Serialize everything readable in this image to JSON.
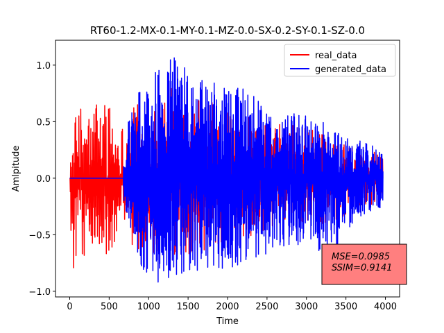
{
  "chart_data": {
    "type": "line",
    "title": "RT60-1.2-MX-0.1-MY-0.1-MZ-0.0-SX-0.2-SY-0.1-SZ-0.0",
    "xlabel": "Time",
    "ylabel": "Amlpitude",
    "xlim": [
      -180,
      4180
    ],
    "ylim": [
      -1.05,
      1.22
    ],
    "x_ticks": [
      0,
      500,
      1000,
      1500,
      2000,
      2500,
      3000,
      3500,
      4000
    ],
    "x_tick_labels": [
      "0",
      "500",
      "1000",
      "1500",
      "2000",
      "2500",
      "3000",
      "3500",
      "4000"
    ],
    "y_ticks": [
      1.0,
      0.5,
      0.0,
      -0.5,
      -1.0
    ],
    "y_tick_labels": [
      "1.0",
      "0.5",
      "0.0",
      "−0.5",
      "−1.0"
    ],
    "grid": false,
    "legend_position": "top-right",
    "series": [
      {
        "name": "real_data",
        "color": "#ff0000",
        "x_range": [
          0,
          3970
        ],
        "envelope": {
          "x": [
            0,
            30,
            100,
            200,
            300,
            400,
            600,
            700,
            800,
            1000,
            1200,
            1500,
            2000,
            2500,
            3000,
            3500,
            3970
          ],
          "max": [
            0.3,
            0.25,
            0.75,
            0.5,
            0.7,
            0.8,
            0.6,
            0.45,
            0.7,
            0.65,
            0.8,
            0.8,
            0.6,
            0.5,
            0.45,
            0.3,
            0.25
          ],
          "min": [
            -0.1,
            -0.92,
            -0.6,
            -0.8,
            -0.7,
            -0.7,
            -0.6,
            -0.55,
            -0.6,
            -0.7,
            -0.75,
            -0.7,
            -0.55,
            -0.5,
            -0.45,
            -0.35,
            -0.2
          ]
        }
      },
      {
        "name": "generated_data",
        "color": "#0000ff",
        "x_range": [
          0,
          3970
        ],
        "flat_until": 680,
        "envelope": {
          "x": [
            680,
            750,
            900,
            1100,
            1300,
            1500,
            1800,
            2000,
            2300,
            2600,
            3000,
            3300,
            3600,
            3970
          ],
          "max": [
            0.2,
            0.55,
            0.85,
            0.95,
            1.11,
            0.95,
            0.85,
            0.8,
            0.82,
            0.6,
            0.55,
            0.48,
            0.35,
            0.25
          ],
          "min": [
            -0.2,
            -0.4,
            -0.8,
            -0.93,
            -0.92,
            -0.85,
            -0.8,
            -0.82,
            -0.75,
            -0.65,
            -0.6,
            -0.7,
            -0.4,
            -0.25
          ]
        }
      }
    ],
    "annotation": {
      "lines": [
        "MSE=0.0985",
        "SSIM=0.9141"
      ],
      "background": "#ff7f7f",
      "position": "bottom-right"
    }
  }
}
